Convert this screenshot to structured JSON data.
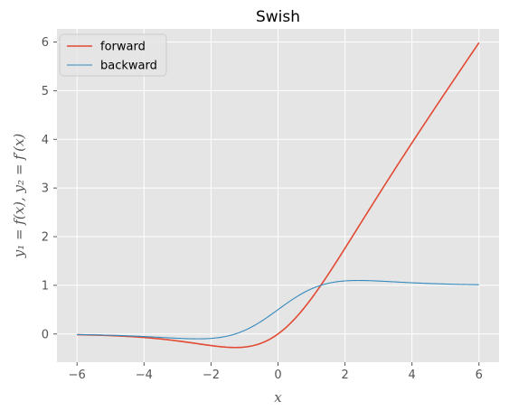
{
  "chart_data": {
    "type": "line",
    "title": "Swish",
    "xlabel": "x",
    "ylabel": "y₁ = f(x), y₂ = f′(x)",
    "xlim": [
      -6.6,
      6.6
    ],
    "ylim": [
      -0.58,
      6.27
    ],
    "xticks": [
      -6,
      -4,
      -2,
      0,
      2,
      4,
      6
    ],
    "yticks": [
      0,
      1,
      2,
      3,
      4,
      5,
      6
    ],
    "grid": true,
    "legend_position": "upper-left",
    "background_color": "#e5e5e5",
    "series": [
      {
        "name": "forward",
        "color": "#e24a33",
        "function": "x * sigmoid(x)",
        "x_range": [
          -6,
          6
        ],
        "samples": 241
      },
      {
        "name": "backward",
        "color": "#348abd",
        "function": "sigmoid(x) + x * sigmoid(x) * (1 - sigmoid(x))",
        "x_range": [
          -6,
          6
        ],
        "samples": 241
      }
    ]
  }
}
